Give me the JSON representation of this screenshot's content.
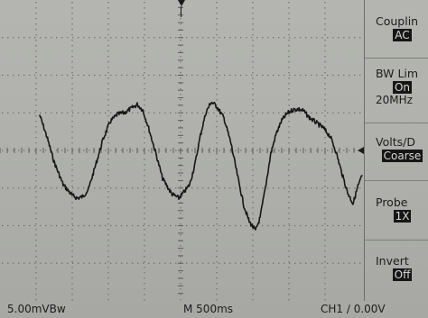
{
  "menu": {
    "coupling": {
      "title": "Couplin",
      "value": "AC"
    },
    "bw_limit": {
      "title": "BW Lim",
      "value": "On",
      "sub": "20MHz"
    },
    "volts_div": {
      "title": "Volts/D",
      "value": "Coarse"
    },
    "probe": {
      "title": "Probe",
      "value": "1X"
    },
    "invert": {
      "title": "Invert",
      "value": "Off"
    }
  },
  "readouts": {
    "ch1_scale": "5.00mVBw",
    "timebase": "M 500ms",
    "trigger": "CH1 ∕ 0.00V"
  },
  "colors": {
    "screen_bg": "#b1b2ad",
    "trace": "#161616",
    "grid": "#6e6f6a"
  }
}
